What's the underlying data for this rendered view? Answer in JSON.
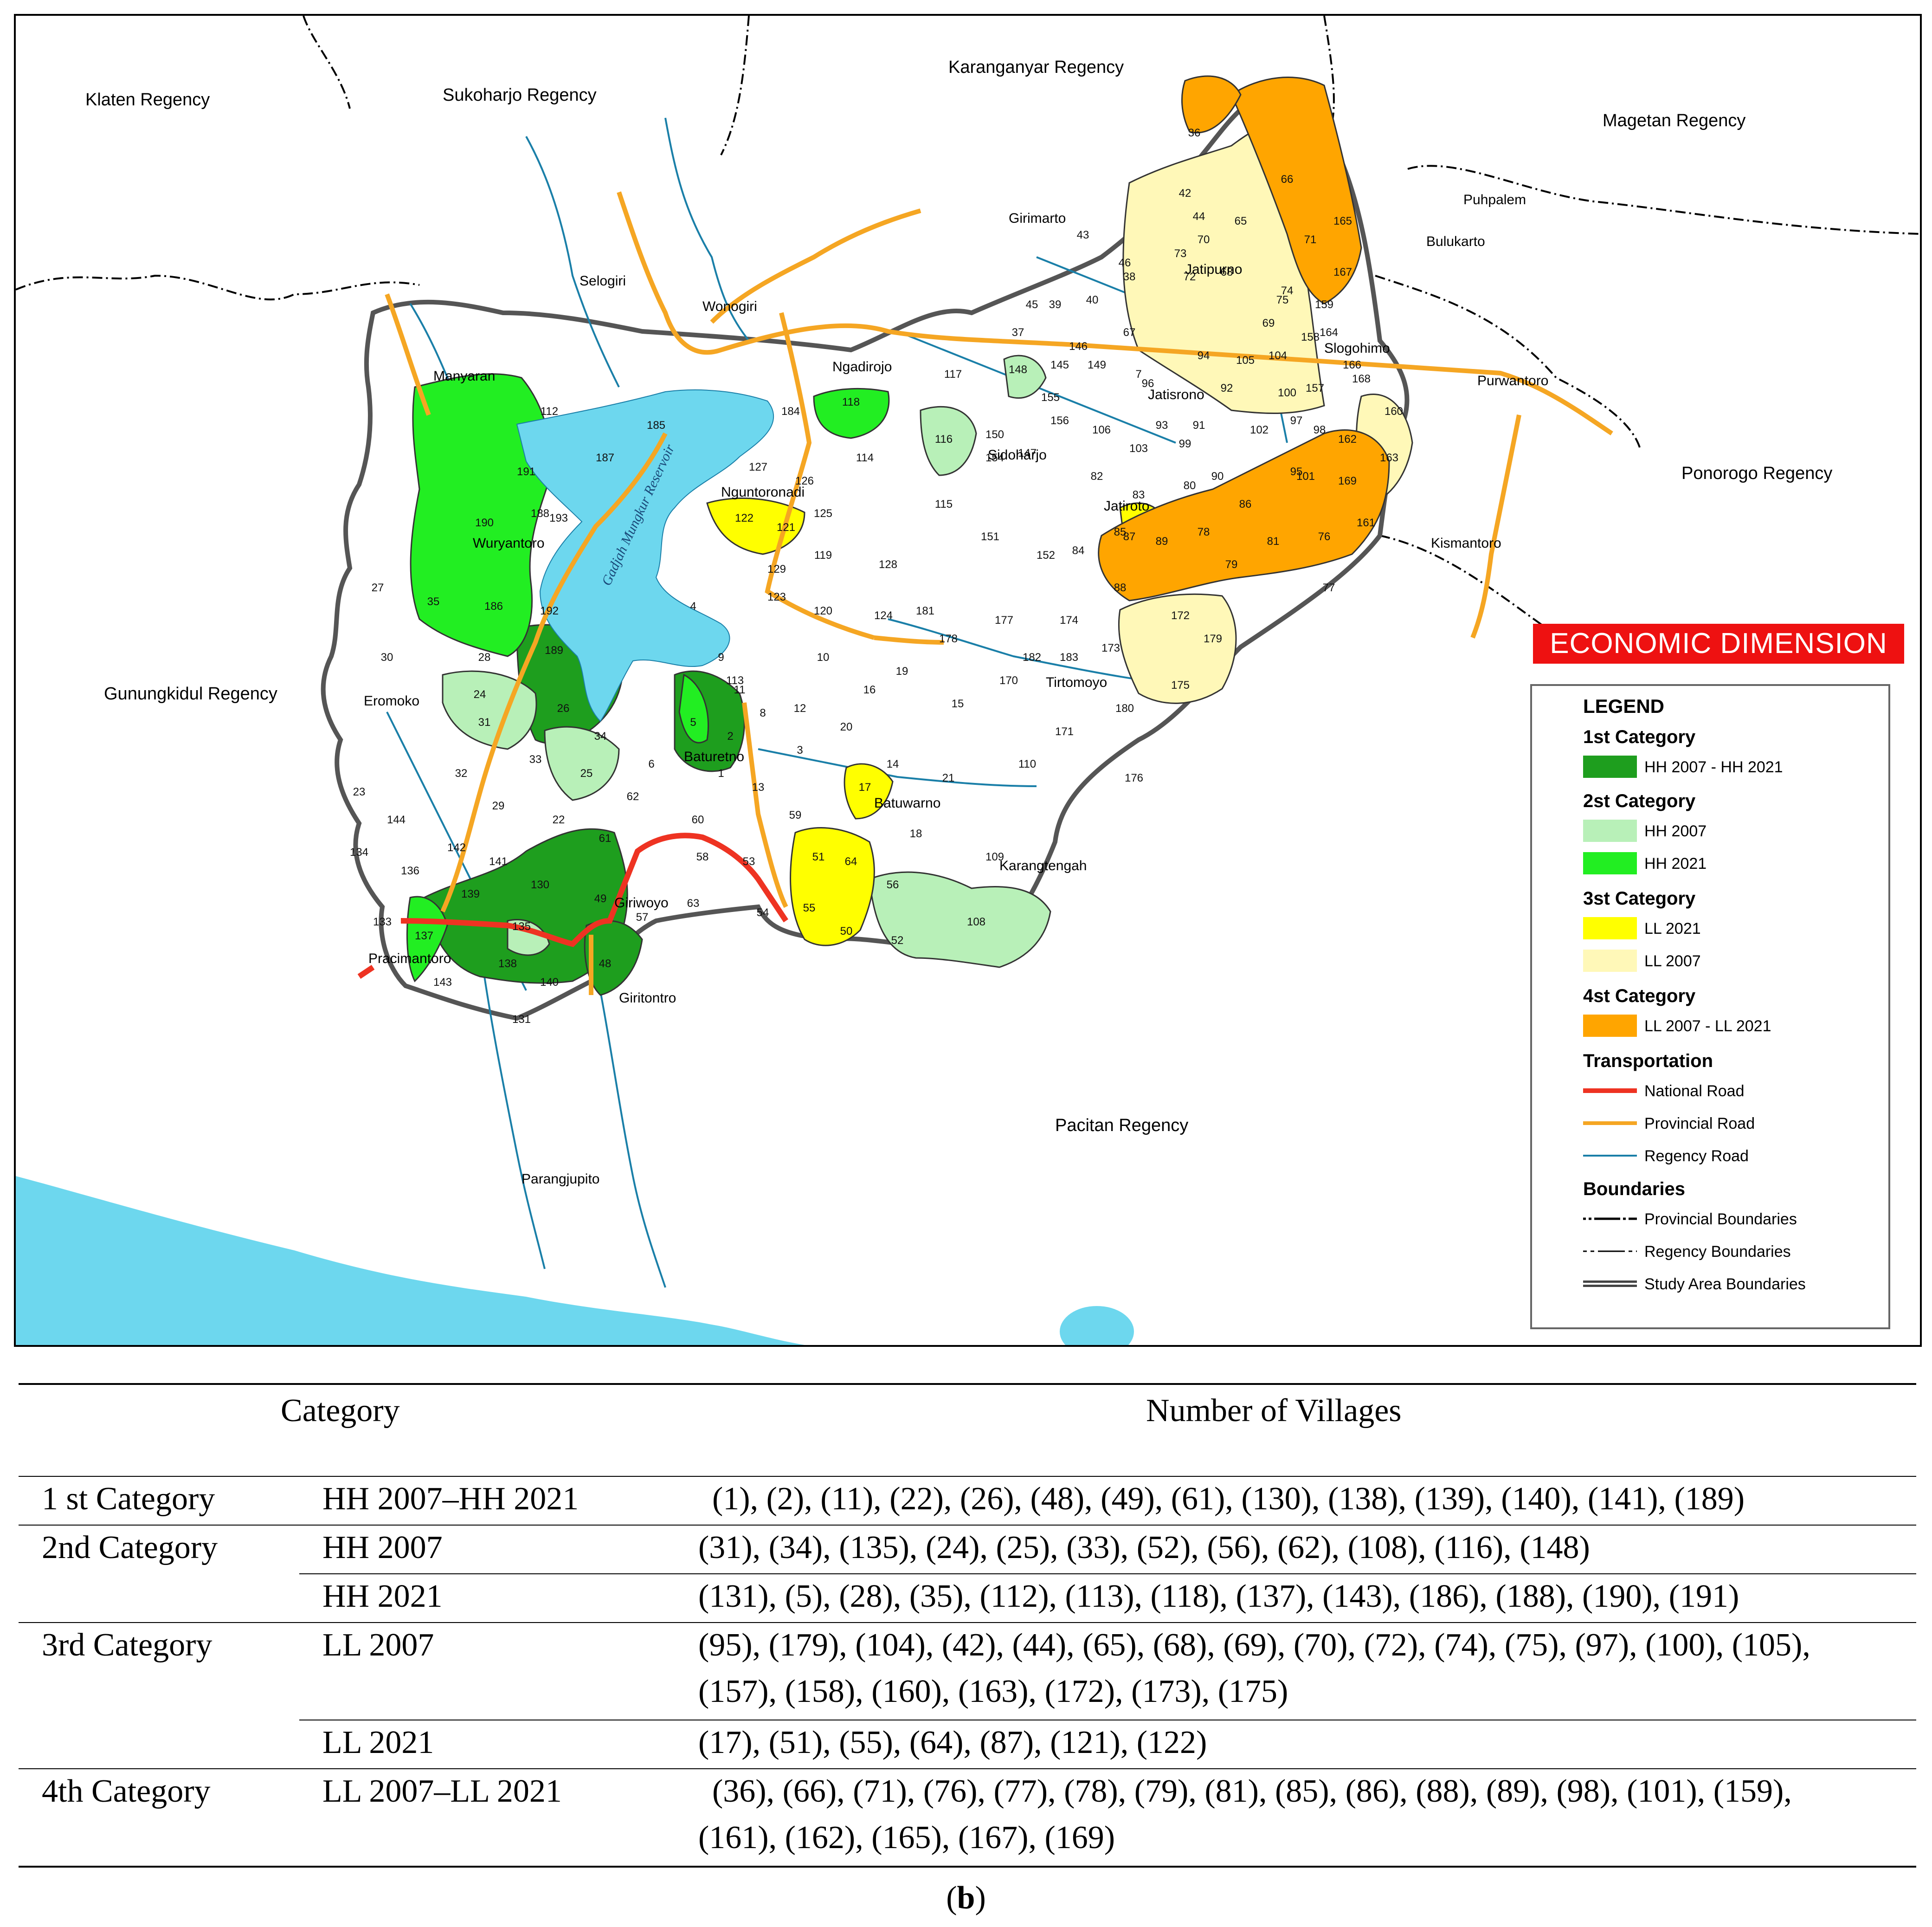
{
  "map": {
    "badge": "ECONOMIC DIMENSION",
    "reservoir_label": "Gadjah Mungkur Reservoir",
    "regencies": [
      "Klaten Regency",
      "Sukoharjo Regency",
      "Karanganyar Regency",
      "Magetan Regency",
      "Ponorogo Regency",
      "Gunungkidul Regency",
      "Pacitan Regency"
    ],
    "districts": [
      "Selogiri",
      "Wonogiri",
      "Girimarto",
      "Jatipurno",
      "Bulukarto",
      "Puhpalem",
      "Slogohimo",
      "Purwantoro",
      "Manyaran",
      "Ngadirojo",
      "Jatisrono",
      "Sidoharjo",
      "Nguntoronadi",
      "Wuryantoro",
      "Jatiroto",
      "Kismantoro",
      "Tirtomoyo",
      "Eromoko",
      "Baturetno",
      "Batuwarno",
      "Karangtengah",
      "Giriwoyo",
      "Pracimantoro",
      "Giritontro",
      "Parangjupito"
    ],
    "village_numbers": [
      "1",
      "2",
      "11",
      "22",
      "26",
      "48",
      "49",
      "61",
      "130",
      "138",
      "139",
      "140",
      "141",
      "189",
      "31",
      "34",
      "135",
      "24",
      "25",
      "33",
      "52",
      "56",
      "62",
      "108",
      "116",
      "148",
      "131",
      "5",
      "28",
      "35",
      "112",
      "113",
      "118",
      "137",
      "143",
      "186",
      "188",
      "190",
      "191",
      "95",
      "179",
      "104",
      "42",
      "44",
      "65",
      "68",
      "69",
      "70",
      "72",
      "74",
      "75",
      "97",
      "100",
      "105",
      "157",
      "158",
      "160",
      "163",
      "172",
      "173",
      "175",
      "17",
      "51",
      "55",
      "64",
      "87",
      "121",
      "122",
      "36",
      "66",
      "71",
      "76",
      "77",
      "78",
      "79",
      "81",
      "85",
      "86",
      "88",
      "89",
      "98",
      "101",
      "159",
      "161",
      "162",
      "165",
      "167",
      "169",
      "185",
      "187",
      "184",
      "114",
      "115",
      "127",
      "126",
      "125",
      "119",
      "128",
      "124",
      "120",
      "123",
      "129",
      "4",
      "9",
      "10",
      "16",
      "19",
      "15",
      "20",
      "8",
      "12",
      "3",
      "6",
      "13",
      "14",
      "21",
      "18",
      "59",
      "60",
      "58",
      "53",
      "54",
      "63",
      "57",
      "50",
      "109",
      "110",
      "176",
      "180",
      "171",
      "170",
      "183",
      "182",
      "177",
      "178",
      "181",
      "174",
      "151",
      "152",
      "84",
      "82",
      "83",
      "80",
      "90",
      "91",
      "99",
      "103",
      "106",
      "150",
      "154",
      "147",
      "156",
      "155",
      "149",
      "145",
      "146",
      "39",
      "40",
      "45",
      "37",
      "38",
      "46",
      "43",
      "73",
      "67",
      "96",
      "93",
      "94",
      "92",
      "102",
      "164",
      "168",
      "166",
      "27",
      "30",
      "32",
      "29",
      "23",
      "144",
      "142",
      "134",
      "136",
      "133",
      "117",
      "7",
      "192",
      "193"
    ]
  },
  "legend": {
    "title": "LEGEND",
    "cat1": {
      "heading": "1st Category",
      "items": [
        {
          "label": "HH 2007 - HH 2021",
          "color": "#1e9e1e"
        }
      ]
    },
    "cat2": {
      "heading": "2st Category",
      "items": [
        {
          "label": "HH 2007",
          "color": "#b8f0b8"
        },
        {
          "label": "HH 2021",
          "color": "#22ee22"
        }
      ]
    },
    "cat3": {
      "heading": "3st Category",
      "items": [
        {
          "label": "LL 2021",
          "color": "#ffff00"
        },
        {
          "label": "LL 2007",
          "color": "#fff8b8"
        }
      ]
    },
    "cat4": {
      "heading": "4st Category",
      "items": [
        {
          "label": "LL 2007 - LL 2021",
          "color": "#ffa500"
        }
      ]
    },
    "transport": {
      "heading": "Transportation",
      "items": [
        {
          "label": "National Road",
          "color": "#ee3322"
        },
        {
          "label": "Provincial Road",
          "color": "#f5a623"
        },
        {
          "label": "Regency Road",
          "color": "#1a7fa8"
        }
      ]
    },
    "boundaries": {
      "heading": "Boundaries",
      "items": [
        {
          "label": "Provincial Boundaries"
        },
        {
          "label": "Regency Boundaries"
        },
        {
          "label": "Study Area Boundaries"
        }
      ]
    }
  },
  "table": {
    "header_category": "Category",
    "header_villages": "Number of Villages",
    "rows": [
      {
        "category": "1 st Category",
        "sub": "HH 2007–HH 2021",
        "lines": [
          "(1), (2), (11), (22), (26), (48), (49), (61), (130), (138), (139), (140), (141), (189)"
        ]
      },
      {
        "category": "2nd Category",
        "sub": "HH 2007",
        "lines": [
          "(31), (34), (135), (24), (25), (33), (52), (56), (62), (108), (116), (148)"
        ]
      },
      {
        "category": "",
        "sub": "HH 2021",
        "lines": [
          "(131), (5), (28), (35), (112), (113), (118), (137), (143), (186), (188), (190), (191)"
        ]
      },
      {
        "category": "3rd Category",
        "sub": "LL 2007",
        "lines": [
          "(95), (179), (104), (42), (44), (65), (68), (69), (70), (72), (74), (75), (97), (100), (105),",
          "(157), (158), (160), (163), (172), (173), (175)"
        ]
      },
      {
        "category": "",
        "sub": "LL 2021",
        "lines": [
          "(17), (51), (55), (64), (87), (121), (122)"
        ]
      },
      {
        "category": "4th Category",
        "sub": "LL 2007–LL 2021",
        "lines": [
          "(36), (66), (71), (76), (77), (78), (79), (81), (85), (86), (88), (89), (98), (101), (159),",
          "(161), (162), (165), (167), (169)"
        ]
      }
    ]
  },
  "caption": {
    "open": "(",
    "letter": "b",
    "close": ")"
  }
}
